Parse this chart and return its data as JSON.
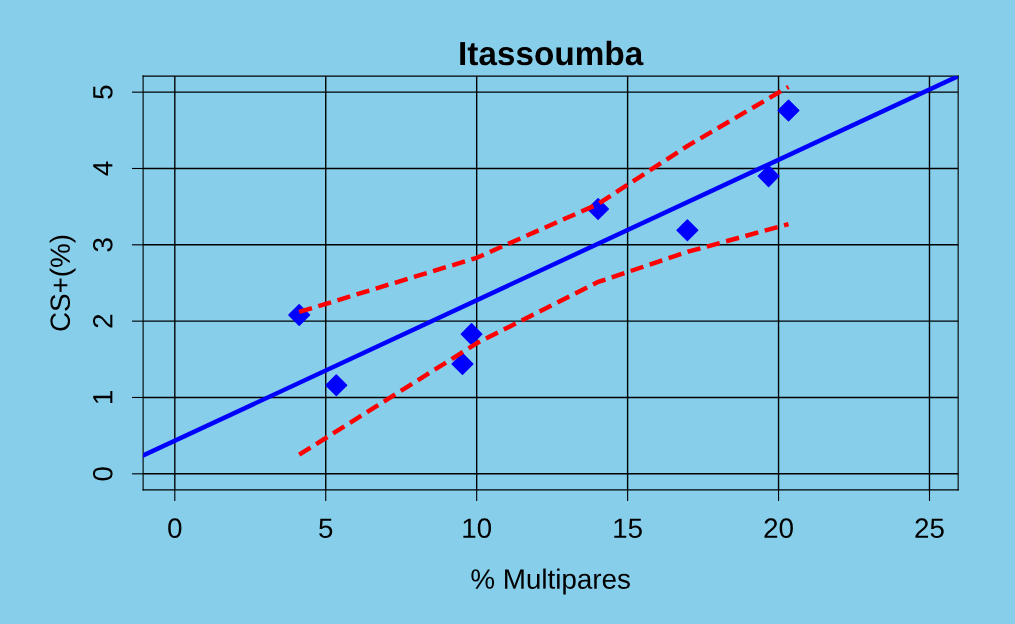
{
  "chart_data": {
    "type": "scatter",
    "title": "Itassoumba",
    "xlabel": "% Multipares",
    "ylabel": "CS+(%)",
    "xlim": [
      -1.05,
      25.95
    ],
    "ylim": [
      -0.21,
      5.21
    ],
    "xticks": [
      0,
      5,
      10,
      15,
      20,
      25
    ],
    "yticks": [
      0,
      1,
      2,
      3,
      4,
      5
    ],
    "grid": true,
    "series": [
      {
        "color": "#0000ff",
        "marker": "diamond",
        "x": [
          4.12,
          5.35,
          9.53,
          9.83,
          14.02,
          16.98,
          19.67,
          20.33
        ],
        "values": [
          2.08,
          1.16,
          1.44,
          1.83,
          3.47,
          3.19,
          3.9,
          4.76
        ]
      },
      {
        "type": "line",
        "color": "#0000ff",
        "line_style": "solid",
        "x": [
          -1.05,
          25.95
        ],
        "values": [
          0.24,
          5.21
        ]
      },
      {
        "type": "line",
        "color": "#ff0000",
        "line_style": "dashed",
        "x": [
          4.12,
          10,
          14,
          17,
          20.33
        ],
        "values": [
          2.12,
          2.83,
          3.53,
          4.3,
          5.07
        ]
      },
      {
        "type": "line",
        "color": "#ff0000",
        "line_style": "dashed",
        "x": [
          4.12,
          10,
          14,
          17,
          20.33
        ],
        "values": [
          0.25,
          1.71,
          2.51,
          2.91,
          3.27
        ]
      }
    ]
  }
}
